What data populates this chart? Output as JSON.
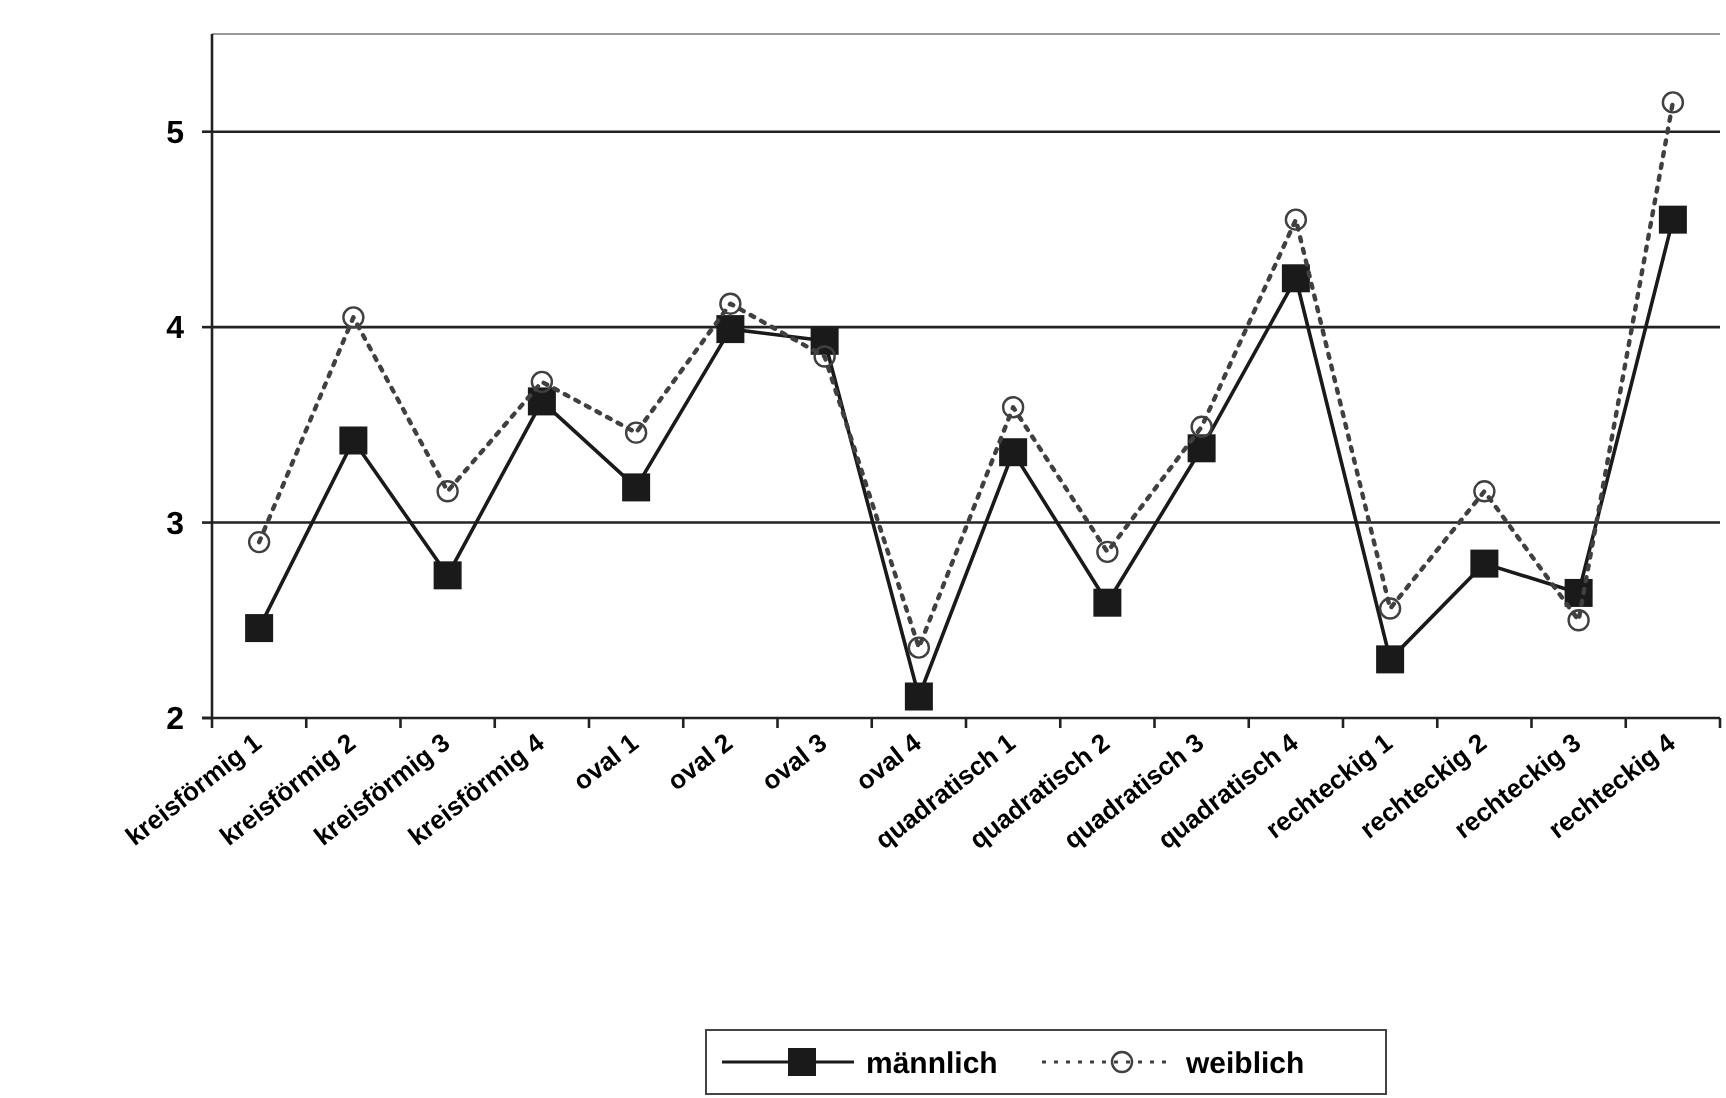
{
  "chart_data": {
    "type": "line",
    "categories": [
      "kreisförmig 1",
      "kreisförmig 2",
      "kreisförmig 3",
      "kreisförmig 4",
      "oval 1",
      "oval 2",
      "oval 3",
      "oval 4",
      "quadratisch 1",
      "quadratisch 2",
      "quadratisch 3",
      "quadratisch 4",
      "rechteckig 1",
      "rechteckig 2",
      "rechteckig 3",
      "rechteckig 4"
    ],
    "ylim": [
      2,
      5.5
    ],
    "yticks": [
      2,
      3,
      4,
      5
    ],
    "grid": "y",
    "legend": "bottom",
    "series": [
      {
        "name": "männlich",
        "color": "#1a1a1a",
        "marker": "square",
        "line_style": "solid",
        "values": [
          2.46,
          3.42,
          2.73,
          3.62,
          3.18,
          3.99,
          3.93,
          2.11,
          3.36,
          2.59,
          3.38,
          4.25,
          2.3,
          2.79,
          2.64,
          4.55
        ]
      },
      {
        "name": "weiblich",
        "color": "#404040",
        "marker": "circle",
        "line_style": "dotted",
        "values": [
          2.9,
          4.05,
          3.16,
          3.72,
          3.46,
          4.12,
          3.85,
          2.36,
          3.59,
          2.85,
          3.49,
          4.55,
          2.56,
          3.16,
          2.5,
          5.15
        ]
      }
    ]
  }
}
